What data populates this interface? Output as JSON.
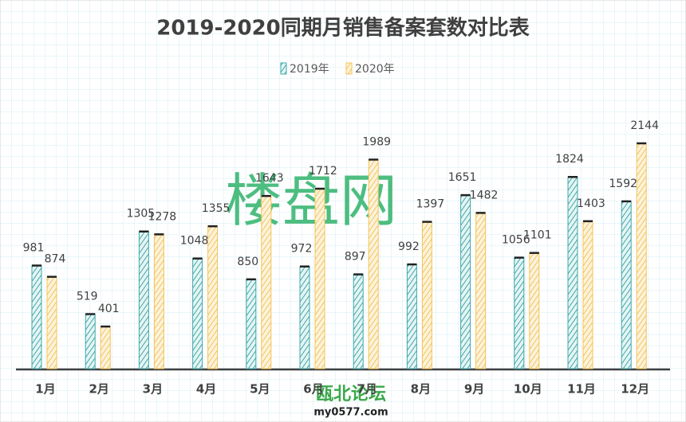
{
  "chart_data": {
    "type": "bar",
    "title": "2019-2020同期月销售备案套数对比表",
    "categories": [
      "1月",
      "2月",
      "3月",
      "4月",
      "5月",
      "6月",
      "7月",
      "8月",
      "9月",
      "10月",
      "11月",
      "12月"
    ],
    "series": [
      {
        "name": "2019年",
        "color": "#3fa9a9",
        "values": [
          981,
          519,
          1305,
          1048,
          850,
          972,
          897,
          992,
          1651,
          1056,
          1824,
          1592
        ]
      },
      {
        "name": "2020年",
        "color": "#f2c45a",
        "values": [
          874,
          401,
          1278,
          1355,
          1643,
          1712,
          1989,
          1397,
          1482,
          1101,
          1403,
          2144
        ]
      }
    ],
    "legend": "top",
    "watermarks": [
      "楼盘网",
      "瓯北论坛",
      "my0577.com"
    ]
  }
}
